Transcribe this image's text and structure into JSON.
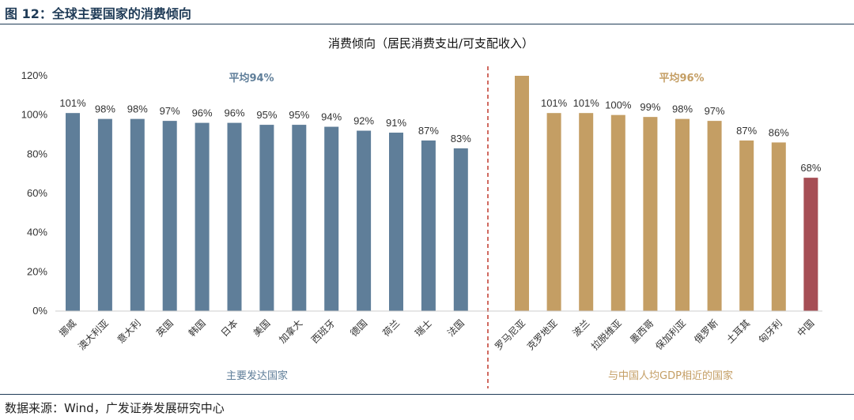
{
  "figure": {
    "title": "图 12：全球主要国家的消费倾向",
    "source": "数据来源：Wind，广发证券发展研究中心"
  },
  "chart_data": {
    "type": "bar",
    "title": "消费倾向（居民消费支出/可支配收入）",
    "ylim": [
      0,
      120
    ],
    "yticks": [
      "0%",
      "20%",
      "40%",
      "60%",
      "80%",
      "100%",
      "120%"
    ],
    "grid": false,
    "groups": [
      {
        "name": "主要发达国家",
        "average_label": "平均94%",
        "color": "#5f7e99",
        "categories": [
          "挪威",
          "澳大利亚",
          "意大利",
          "英国",
          "韩国",
          "日本",
          "美国",
          "加拿大",
          "西班牙",
          "德国",
          "荷兰",
          "瑞士",
          "法国"
        ],
        "values": [
          101,
          98,
          98,
          97,
          96,
          96,
          95,
          95,
          94,
          92,
          91,
          87,
          83
        ],
        "labels": [
          "101%",
          "98%",
          "98%",
          "97%",
          "96%",
          "96%",
          "95%",
          "95%",
          "94%",
          "92%",
          "91%",
          "87%",
          "83%"
        ]
      },
      {
        "name": "与中国人均GDP相近的国家",
        "average_label": "平均96%",
        "color": "#c49e64",
        "categories": [
          "罗马尼亚",
          "克罗地亚",
          "波兰",
          "拉脱维亚",
          "墨西哥",
          "保加利亚",
          "俄罗斯",
          "土耳其",
          "匈牙利",
          "中国"
        ],
        "values": [
          120,
          101,
          101,
          100,
          99,
          98,
          97,
          87,
          86,
          68
        ],
        "labels": [
          "",
          "101%",
          "101%",
          "100%",
          "99%",
          "98%",
          "97%",
          "87%",
          "86%",
          "68%"
        ],
        "highlight": {
          "category": "中国",
          "color": "#a64e55"
        }
      }
    ],
    "divider_color": "#c0392b"
  }
}
